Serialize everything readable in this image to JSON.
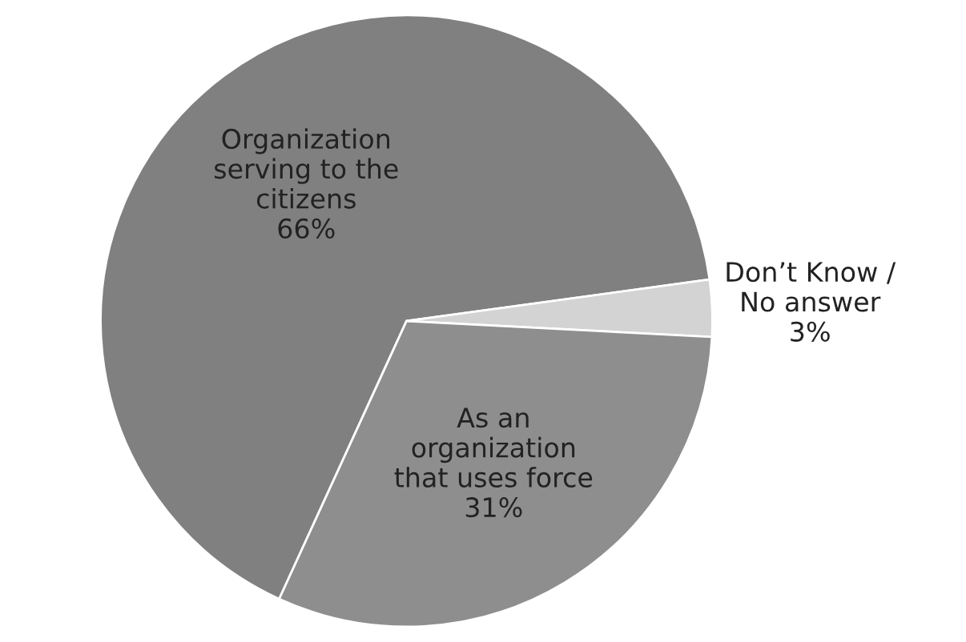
{
  "chart_data": {
    "type": "pie",
    "categories": [
      "Organization\nserving to the\ncitizens",
      "Don’t Know /\nNo answer",
      "As an\norganization\nthat uses force"
    ],
    "values": [
      66,
      3,
      31
    ],
    "value_labels": [
      "66%",
      "3%",
      "31%"
    ],
    "colors": [
      "#808080",
      "#d3d3d3",
      "#8e8e8e"
    ]
  }
}
